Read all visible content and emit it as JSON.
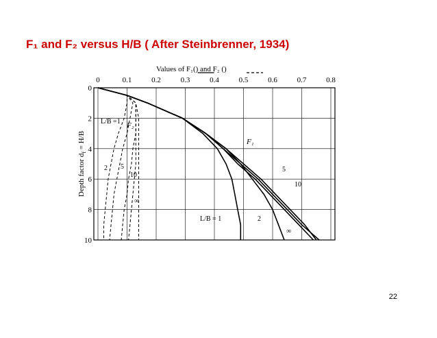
{
  "title": "F₁ and F₂ versus H/B ( After Steinbrenner, 1934)",
  "page_number": "22",
  "chart_data": {
    "type": "line",
    "legend": {
      "prefix": "Values of F₁(",
      "middle": ") and F₂ (",
      "suffix": ")"
    },
    "y_label": {
      "text": "Depth factor d",
      "sub": "f",
      "rest": " = H/B"
    },
    "annotations": [
      "F₁",
      "F₂"
    ],
    "xlim": [
      0,
      0.8
    ],
    "xticks": [
      0,
      0.1,
      0.2,
      0.3,
      0.4,
      0.5,
      0.6,
      0.7,
      0.8
    ],
    "ylim": [
      0,
      10
    ],
    "yticks": [
      0,
      2,
      4,
      6,
      8,
      10
    ],
    "y_reversed": true,
    "grid": true,
    "y": [
      0,
      0.5,
      1,
      2,
      3,
      4,
      5,
      6,
      7,
      8,
      9,
      10
    ],
    "series": [
      {
        "name": "L/B = 1",
        "color": "#000000",
        "style": "solid",
        "values": [
          0,
          0.1,
          0.17,
          0.29,
          0.36,
          0.41,
          0.44,
          0.46,
          0.47,
          0.48,
          0.49,
          0.49
        ]
      },
      {
        "name": "2",
        "color": "#000000",
        "style": "solid",
        "values": [
          0,
          0.1,
          0.17,
          0.29,
          0.37,
          0.43,
          0.49,
          0.53,
          0.57,
          0.6,
          0.62,
          0.64
        ]
      },
      {
        "name": "5",
        "color": "#000000",
        "style": "solid",
        "values": [
          0,
          0.1,
          0.17,
          0.29,
          0.37,
          0.44,
          0.5,
          0.56,
          0.61,
          0.66,
          0.71,
          0.75
        ]
      },
      {
        "name": "10",
        "color": "#000000",
        "style": "solid",
        "values": [
          0,
          0.1,
          0.17,
          0.29,
          0.37,
          0.44,
          0.49,
          0.55,
          0.6,
          0.65,
          0.7,
          0.76
        ]
      },
      {
        "name": "∞",
        "color": "#000000",
        "style": "solid",
        "values": [
          0,
          0.1,
          0.17,
          0.29,
          0.37,
          0.43,
          0.48,
          0.54,
          0.59,
          0.64,
          0.69,
          0.74
        ]
      },
      {
        "name": "L/B =1",
        "color": "#000000",
        "style": "dashed",
        "values": [
          0,
          0.1,
          0.1,
          0.09,
          0.07,
          0.055,
          0.045,
          0.035,
          0.03,
          0.025,
          0.02,
          0.02
        ]
      },
      {
        "name": "2",
        "color": "#000000",
        "style": "dashed",
        "values": [
          0,
          0.1,
          0.12,
          0.11,
          0.1,
          0.085,
          0.075,
          0.065,
          0.055,
          0.05,
          0.045,
          0.04
        ]
      },
      {
        "name": "5",
        "color": "#000000",
        "style": "dashed",
        "values": [
          0,
          0.1,
          0.13,
          0.13,
          0.13,
          0.12,
          0.115,
          0.105,
          0.1,
          0.09,
          0.085,
          0.08
        ]
      },
      {
        "name": "10",
        "color": "#000000",
        "style": "dashed",
        "values": [
          0,
          0.1,
          0.13,
          0.13,
          0.13,
          0.13,
          0.13,
          0.125,
          0.12,
          0.115,
          0.11,
          0.105
        ]
      },
      {
        "name": "∞",
        "color": "#000000",
        "style": "dashed",
        "values": [
          0,
          0.1,
          0.13,
          0.14,
          0.14,
          0.14,
          0.14,
          0.14,
          0.14,
          0.14,
          0.14,
          0.14
        ]
      }
    ]
  }
}
